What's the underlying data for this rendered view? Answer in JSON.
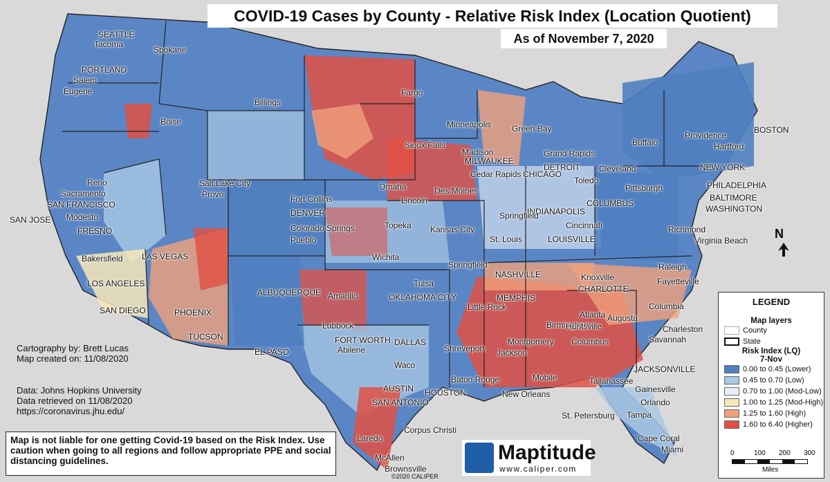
{
  "title": "COVID-19 Cases by County - Relative Risk Index (Location Quotient)",
  "subtitle": "As of November 7, 2020",
  "credits": {
    "cartography": "Cartography by: Brett Lucas",
    "created": "Map created on: 11/08/2020",
    "data_source": "Data: Johns Hopkins University",
    "retrieved": "Data retrieved on 11/08/2020",
    "url": "https://coronavirus.jhu.edu/"
  },
  "disclaimer": "Map is not liable for one getting Covid-19 based on the Risk Index. Use caution when going to all regions and follow appropriate PPE and social distancing guidelines.",
  "legend": {
    "title": "LEGEND",
    "layers_title": "Map layers",
    "county": "County",
    "state": "State",
    "risk_title": "Risk Index (LQ)",
    "date": "7-Nov",
    "classes": [
      {
        "label": "0.00 to 0.45 (Lower)",
        "color": "#4f7fbf"
      },
      {
        "label": "0.45 to 0.70 (Low)",
        "color": "#a9c8e3"
      },
      {
        "label": "0.70 to 1.00 (Mod-Low)",
        "color": "#e6f0f8"
      },
      {
        "label": "1.00 to 1.25 (Mod-High)",
        "color": "#f8e8b6"
      },
      {
        "label": "1.25 to 1.60 (High)",
        "color": "#f0a07b"
      },
      {
        "label": "1.60 to 6.40 (Higher)",
        "color": "#e15043"
      }
    ]
  },
  "scale": {
    "ticks": [
      "0",
      "100",
      "200",
      "300"
    ],
    "unit": "Miles"
  },
  "north": "N",
  "brand": {
    "name": "Maptitude",
    "url": "www.caliper.com",
    "copyright": "©2020 CALIPER"
  },
  "cities": [
    "SEATTLE",
    "Tacoma",
    "Spokane",
    "PORTLAND",
    "Salem",
    "Eugene",
    "Boise",
    "Billings",
    "Fargo",
    "Minneapolis",
    "Green Bay",
    "Sioux Falls",
    "Madison",
    "MILWAUKEE",
    "Grand Rapids",
    "DETROIT",
    "Buffalo",
    "Providence",
    "BOSTON",
    "Hartford",
    "NEW YORK",
    "PHILADELPHIA",
    "BALTIMORE",
    "WASHINGTON",
    "Richmond",
    "Virginia Beach",
    "Cleveland",
    "Toledo",
    "Pittsburgh",
    "COLUMBUS",
    "INDIANAPOLIS",
    "Cincinnati",
    "LOUISVILLE",
    "Springfield",
    "St. Louis",
    "CHICAGO",
    "Cedar Rapids",
    "Des Moines",
    "Omaha",
    "Lincoln",
    "Reno",
    "Sacramento",
    "SAN FRANCISCO",
    "SAN JOSE",
    "Modesto",
    "FRESNO",
    "Bakersfield",
    "LOS ANGELES",
    "SAN DIEGO",
    "LAS VEGAS",
    "PHOENIX",
    "TUCSON",
    "Salt Lake City",
    "Provo",
    "Fort Collins",
    "DENVER",
    "Colorado Springs",
    "Pueblo",
    "ALBUQUERQUE",
    "EL PASO",
    "Amarillo",
    "Lubbock",
    "FORT WORTH",
    "DALLAS",
    "Abilene",
    "Waco",
    "AUSTIN",
    "SAN ANTONIO",
    "HOUSTON",
    "Corpus Christi",
    "Laredo",
    "McAllen",
    "Brownsville",
    "Topeka",
    "Kansas City",
    "Wichita",
    "Springfield",
    "Tulsa",
    "OKLAHOMA CITY",
    "Little Rock",
    "Shreveport",
    "Baton Rouge",
    "New Orleans",
    "MEMPHIS",
    "NASHVILLE",
    "Knoxville",
    "CHARLOTTE",
    "Raleigh",
    "Fayetteville",
    "Columbia",
    "Charleston",
    "Savannah",
    "Augusta",
    "Atlanta",
    "Birmingham",
    "Huntsville",
    "Montgomery",
    "Columbus",
    "Jackson",
    "Mobile",
    "Tallahassee",
    "JACKSONVILLE",
    "Gainesville",
    "Orlando",
    "Tampa",
    "St. Petersburg",
    "Cape Coral",
    "Miami"
  ]
}
